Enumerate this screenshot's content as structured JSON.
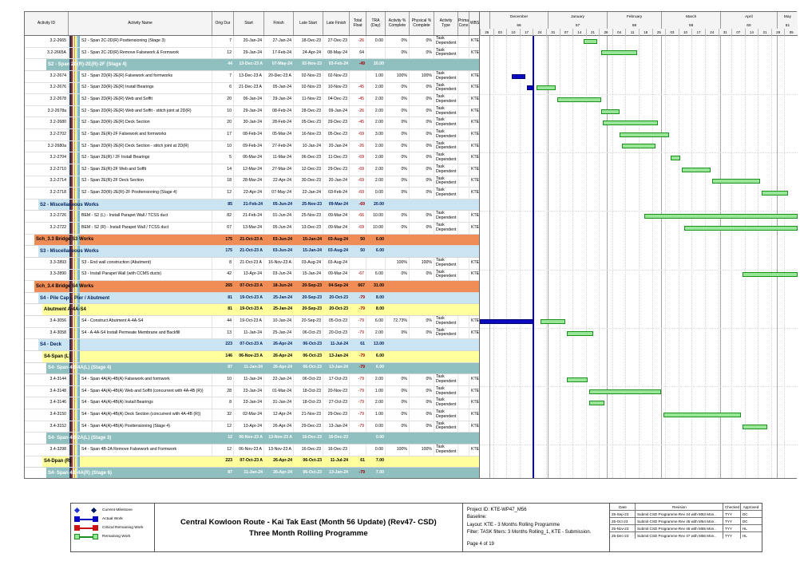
{
  "table": {
    "columns": [
      "Activity ID",
      "Activity Name",
      "Orig Dur",
      "Start",
      "Finish",
      "Late Start",
      "Late Finish",
      "Total Float",
      "TRA (Day)",
      "Activity % Complete",
      "Physical % Complete",
      "Activity Type",
      "Prima Cons",
      "WBS"
    ],
    "rows": [
      {
        "t": "task",
        "id": "3.2-2665",
        "n": "S2 - Span 2C-2D(R) Posttensioning (Stage 3)",
        "od": "7",
        "st": "20-Jan-24",
        "fn": "27-Jan-24",
        "ls": "18-Dec-23",
        "lf": "27-Dec-23",
        "tf": "-26",
        "tra": "0.00",
        "ap": "0%",
        "pp": "0%",
        "at": "Task Dependent",
        "wbs": "KTE-W"
      },
      {
        "t": "task",
        "id": "3.2-2665A",
        "n": "S2 - Span 2C-2D(R) Remove Falsework & Formwork",
        "od": "12",
        "st": "29-Jan-24",
        "fn": "17-Feb-24",
        "ls": "24-Apr-24",
        "lf": "08-May-24",
        "tf": "64",
        "tra": "",
        "ap": "0%",
        "pp": "0%",
        "at": "Task Dependent",
        "wbs": "KTE-W"
      },
      {
        "t": "g4",
        "n": "S2 - Span 2D(R)-2E(R)-2F (Stage 4)",
        "od": "44",
        "st": "13-Dec-23 A",
        "fn": "07-May-24",
        "ls": "02-Nov-23",
        "lf": "03-Feb-24",
        "tf": "-49",
        "tra": "20.00"
      },
      {
        "t": "task",
        "id": "3.2-2674",
        "n": "S2 - Span 2D(R)-2E(R) Falsework and formworks",
        "od": "7",
        "st": "13-Dec-23 A",
        "fn": "20-Dec-23 A",
        "ls": "02-Nov-23",
        "lf": "02-Nov-23",
        "tf": "",
        "tra": "1.00",
        "ap": "100%",
        "pp": "100%",
        "at": "Task Dependent",
        "wbs": "KTE-W"
      },
      {
        "t": "task",
        "id": "3.2-2676",
        "n": "S2 - Span 2D(R)-2E(R) Install Bearings",
        "od": "6",
        "st": "21-Dec-23 A",
        "fn": "05-Jan-24",
        "ls": "02-Nov-23",
        "lf": "10-Nov-23",
        "tf": "-45",
        "tra": "2.00",
        "ap": "0%",
        "pp": "0%",
        "at": "Task Dependent",
        "wbs": "KTE-W"
      },
      {
        "t": "task",
        "id": "3.2-2678",
        "n": "S2 - Span 2D(R)-2E(R) Web and Soffit",
        "od": "20",
        "st": "06-Jan-24",
        "fn": "29-Jan-24",
        "ls": "11-Nov-23",
        "lf": "04-Dec-23",
        "tf": "-45",
        "tra": "2.00",
        "ap": "0%",
        "pp": "0%",
        "at": "Task Dependent",
        "wbs": "KTE-W"
      },
      {
        "t": "task",
        "id": "3.2-2678a",
        "n": "S2 - Span 2D(R)-2E(R) Web and Soffit - stitch joint at 2D(R)",
        "od": "10",
        "st": "29-Jan-24",
        "fn": "08-Feb-24",
        "ls": "28-Dec-23",
        "lf": "09-Jan-24",
        "tf": "-26",
        "tra": "2.00",
        "ap": "0%",
        "pp": "0%",
        "at": "Task Dependent",
        "wbs": "KTE-W"
      },
      {
        "t": "task",
        "id": "3.2-2680",
        "n": "S2 - Span 2D(R)-2E(R) Deck Section",
        "od": "20",
        "st": "30-Jan-24",
        "fn": "28-Feb-24",
        "ls": "05-Dec-23",
        "lf": "29-Dec-23",
        "tf": "-45",
        "tra": "2.00",
        "ap": "0%",
        "pp": "0%",
        "at": "Task Dependent",
        "wbs": "KTE-W"
      },
      {
        "t": "task",
        "id": "3.2-2702",
        "n": "S2 - Span 2E(R)-2F Falsework and formworks",
        "od": "17",
        "st": "08-Feb-24",
        "fn": "05-Mar-24",
        "ls": "16-Nov-23",
        "lf": "05-Dec-23",
        "tf": "-69",
        "tra": "3.00",
        "ap": "0%",
        "pp": "0%",
        "at": "Task Dependent",
        "wbs": "KTE-W"
      },
      {
        "t": "task",
        "id": "3.2-2680a",
        "n": "S2 - Span 2D(R)-2E(R) Deck Section - stitch joint at 2D(R)",
        "od": "10",
        "st": "09-Feb-24",
        "fn": "27-Feb-24",
        "ls": "10-Jan-24",
        "lf": "20-Jan-24",
        "tf": "-26",
        "tra": "2.00",
        "ap": "0%",
        "pp": "0%",
        "at": "Task Dependent",
        "wbs": "KTE-W"
      },
      {
        "t": "task",
        "id": "3.2-2704",
        "n": "S2 - Span 2E(R) / 2F Install Bearings",
        "od": "5",
        "st": "06-Mar-24",
        "fn": "11-Mar-24",
        "ls": "06-Dec-23",
        "lf": "11-Dec-23",
        "tf": "-69",
        "tra": "2.00",
        "ap": "0%",
        "pp": "0%",
        "at": "Task Dependent",
        "wbs": "KTE-W"
      },
      {
        "t": "task",
        "id": "3.2-2710",
        "n": "S2 - Span 2E(R)-2F Web and Soffit",
        "od": "14",
        "st": "12-Mar-24",
        "fn": "27-Mar-24",
        "ls": "12-Dec-23",
        "lf": "29-Dec-23",
        "tf": "-69",
        "tra": "2.00",
        "ap": "0%",
        "pp": "0%",
        "at": "Task Dependent",
        "wbs": "KTE-W"
      },
      {
        "t": "task",
        "id": "3.2-2714",
        "n": "S2 - Span 2E(R)-2F Deck Section",
        "od": "18",
        "st": "28-Mar-24",
        "fn": "22-Apr-24",
        "ls": "30-Dec-23",
        "lf": "20-Jan-24",
        "tf": "-69",
        "tra": "2.00",
        "ap": "0%",
        "pp": "0%",
        "at": "Task Dependent",
        "wbs": "KTE-W"
      },
      {
        "t": "task",
        "id": "3.2-2718",
        "n": "S2 - Span 2D(R)-2E(R)-2F Posttensioning (Stage 4)",
        "od": "12",
        "st": "23-Apr-24",
        "fn": "07-May-24",
        "ls": "22-Jan-24",
        "lf": "03-Feb-24",
        "tf": "-69",
        "tra": "0.00",
        "ap": "0%",
        "pp": "0%",
        "at": "Task Dependent",
        "wbs": "KTE-W"
      },
      {
        "t": "g2",
        "n": "S2 - Miscellaneous Works",
        "od": "85",
        "st": "21-Feb-24",
        "fn": "05-Jun-24",
        "ls": "25-Nov-23",
        "lf": "09-Mar-24",
        "tf": "-69",
        "tra": "20.00"
      },
      {
        "t": "task",
        "id": "3.2-2726",
        "n": "BEM - S2 (L) - Install Parapet Wall / TCSS duct",
        "od": "82",
        "st": "21-Feb-24",
        "fn": "01-Jun-24",
        "ls": "25-Nov-23",
        "lf": "09-Mar-24",
        "tf": "-66",
        "tra": "10.00",
        "ap": "0%",
        "pp": "0%",
        "at": "Task Dependent",
        "wbs": "KTE-W"
      },
      {
        "t": "task",
        "id": "3.2-2722",
        "n": "BEM - S2 (R) - Install Parapet Wall / TCSS duct",
        "od": "67",
        "st": "13-Mar-24",
        "fn": "05-Jun-24",
        "ls": "13-Dec-23",
        "lf": "09-Mar-24",
        "tf": "-69",
        "tra": "10.00",
        "ap": "0%",
        "pp": "0%",
        "at": "Task Dependent",
        "wbs": "KTE-W"
      },
      {
        "t": "g1",
        "n": "Sch_3.3 Bridge S3 Works",
        "od": "175",
        "st": "21-Oct-23 A",
        "fn": "03-Jun-24",
        "ls": "15-Jan-24",
        "lf": "03-Aug-24",
        "tf": "50",
        "tra": "6.00"
      },
      {
        "t": "g2",
        "n": "S3 - Miscellaneous Works",
        "od": "175",
        "st": "21-Oct-23 A",
        "fn": "03-Jun-24",
        "ls": "15-Jan-24",
        "lf": "03-Aug-24",
        "tf": "50",
        "tra": "6.00"
      },
      {
        "t": "task",
        "id": "3.3-2893",
        "n": "S3 - End wall construction (Abutment)",
        "od": "8",
        "st": "21-Oct-23 A",
        "fn": "16-Nov-23 A",
        "ls": "03-Aug-24",
        "lf": "03-Aug-24",
        "tf": "",
        "tra": "",
        "ap": "100%",
        "pp": "100%",
        "at": "Task Dependent",
        "wbs": "KTE-W"
      },
      {
        "t": "task",
        "id": "3.3-2890",
        "n": "S3 - Install Parapet Wall (with CCMS ducts)",
        "od": "42",
        "st": "13-Apr-24",
        "fn": "03-Jun-24",
        "ls": "15-Jan-24",
        "lf": "09-Mar-24",
        "tf": "-67",
        "tra": "6.00",
        "ap": "0%",
        "pp": "0%",
        "at": "Task Dependent",
        "wbs": "KTE-W"
      },
      {
        "t": "g1",
        "n": "Sch_3.4 Bridge S4 Works",
        "od": "265",
        "st": "07-Oct-23 A",
        "fn": "18-Jun-24",
        "ls": "20-Sep-23",
        "lf": "04-Sep-24",
        "tf": "667",
        "tra": "31.00"
      },
      {
        "t": "g2",
        "n": "S4 - Pile Caps, Pier / Abutment",
        "od": "81",
        "st": "19-Oct-23 A",
        "fn": "25-Jan-24",
        "ls": "20-Sep-23",
        "lf": "20-Oct-23",
        "tf": "-79",
        "tra": "8.00"
      },
      {
        "t": "g3",
        "n": "Abutment A-4A-S4",
        "od": "81",
        "st": "19-Oct-23 A",
        "fn": "25-Jan-24",
        "ls": "20-Sep-23",
        "lf": "20-Oct-23",
        "tf": "-79",
        "tra": "8.00"
      },
      {
        "t": "task",
        "id": "3.4-3056",
        "n": "S4 - Construct Abutment A-4A-S4",
        "od": "44",
        "st": "19-Oct-23 A",
        "fn": "10-Jan-24",
        "ls": "20-Sep-23",
        "lf": "05-Oct-23",
        "tf": "-79",
        "tra": "6.00",
        "ap": "72.73%",
        "pp": "0%",
        "at": "Task Dependent",
        "wbs": "KTE-W"
      },
      {
        "t": "task",
        "id": "3.4-3058",
        "n": "S4 - A-4A-S4 Install Permeate Membrane and Backfill",
        "od": "13",
        "st": "11-Jan-24",
        "fn": "25-Jan-24",
        "ls": "06-Oct-23",
        "lf": "20-Oct-23",
        "tf": "-79",
        "tra": "2.00",
        "ap": "0%",
        "pp": "0%",
        "at": "Task Dependent",
        "wbs": "KTE-W"
      },
      {
        "t": "g2",
        "n": "S4 - Deck",
        "od": "223",
        "st": "07-Oct-23 A",
        "fn": "26-Apr-24",
        "ls": "06-Oct-23",
        "lf": "11-Jul-24",
        "tf": "61",
        "tra": "13.00"
      },
      {
        "t": "g3",
        "n": "S4-Span (L)",
        "od": "146",
        "st": "06-Nov-23 A",
        "fn": "26-Apr-24",
        "ls": "06-Oct-23",
        "lf": "13-Jan-24",
        "tf": "-79",
        "tra": "6.00"
      },
      {
        "t": "g4",
        "n": "S4- Span 4B-4A(L) (Stage 4)",
        "od": "87",
        "st": "11-Jan-24",
        "fn": "26-Apr-24",
        "ls": "06-Oct-23",
        "lf": "13-Jan-24",
        "tf": "-79",
        "tra": "6.00"
      },
      {
        "t": "task",
        "id": "3.4-3144",
        "n": "S4 - Span 4A(A)-4B(A) Falsework and formwork",
        "od": "10",
        "st": "11-Jan-24",
        "fn": "22-Jan-24",
        "ls": "06-Oct-23",
        "lf": "17-Oct-23",
        "tf": "-79",
        "tra": "2.00",
        "ap": "0%",
        "pp": "0%",
        "at": "Task Dependent",
        "wbs": "KTE-W"
      },
      {
        "t": "task",
        "id": "3.4-3148",
        "n": "S4 - Span 4A(A)-4B(A) Web and Soffit (concurrent with 4A-4B (R))",
        "od": "28",
        "st": "23-Jan-24",
        "fn": "01-Mar-24",
        "ls": "18-Oct-23",
        "lf": "20-Nov-23",
        "tf": "-79",
        "tra": "1.00",
        "ap": "0%",
        "pp": "0%",
        "at": "Task Dependent",
        "wbs": "KTE-W"
      },
      {
        "t": "task",
        "id": "3.4-3146",
        "n": "S4 - Span 4A(A)-4B(A) Install Bearings",
        "od": "8",
        "st": "23-Jan-24",
        "fn": "31-Jan-24",
        "ls": "18-Oct-23",
        "lf": "27-Oct-23",
        "tf": "-79",
        "tra": "2.00",
        "ap": "0%",
        "pp": "0%",
        "at": "Task Dependent",
        "wbs": "KTE-W"
      },
      {
        "t": "task",
        "id": "3.4-3150",
        "n": "S4 - Span 4A(A)-4B(A) Deck Section (concurrent with 4A-4B (R))",
        "od": "32",
        "st": "02-Mar-24",
        "fn": "12-Apr-24",
        "ls": "21-Nov-23",
        "lf": "29-Dec-23",
        "tf": "-79",
        "tra": "1.00",
        "ap": "0%",
        "pp": "0%",
        "at": "Task Dependent",
        "wbs": "KTE-W"
      },
      {
        "t": "task",
        "id": "3.4-3152",
        "n": "S4 - Span 4A(A)-4B(A) Posttensioning (Stage 4)",
        "od": "12",
        "st": "13-Apr-24",
        "fn": "26-Apr-24",
        "ls": "29-Dec-23",
        "lf": "13-Jan-24",
        "tf": "-79",
        "tra": "0.00",
        "ap": "0%",
        "pp": "0%",
        "at": "Task Dependent",
        "wbs": "KTE-W"
      },
      {
        "t": "g4",
        "n": "S4- Span 4B-2A(L) (Stage 3)",
        "od": "12",
        "st": "06-Nov-23 A",
        "fn": "13-Nov-23 A",
        "ls": "16-Dec-23",
        "lf": "16-Dec-23",
        "tf": "",
        "tra": "0.00"
      },
      {
        "t": "task",
        "id": "3.4-3298",
        "n": "S4 - Span 4B-2A Remove Falsework and Formwork",
        "od": "12",
        "st": "06-Nov-23 A",
        "fn": "13-Nov-23 A",
        "ls": "16-Dec-23",
        "lf": "16-Dec-23",
        "tf": "",
        "tra": "0.00",
        "ap": "100%",
        "pp": "100%",
        "at": "Task Dependent",
        "wbs": "KTE-W"
      },
      {
        "t": "g3",
        "n": "S4-Dpan (R)",
        "od": "223",
        "st": "07-Oct-23 A",
        "fn": "26-Apr-24",
        "ls": "06-Oct-23",
        "lf": "11-Jul-24",
        "tf": "61",
        "tra": "7.00"
      },
      {
        "t": "g4",
        "n": "S4- Span 4B-4A(R) (Stage 6)",
        "od": "87",
        "st": "11-Jan-24",
        "fn": "26-Apr-24",
        "ls": "06-Oct-23",
        "lf": "13-Jan-24",
        "tf": "-79",
        "tra": "7.00"
      }
    ]
  },
  "chart_data": {
    "type": "gantt",
    "x_range": [
      "2023-11-26",
      "2024-05-12"
    ],
    "data_date": "2023-12-24",
    "timeline": {
      "lead_days": 5,
      "months": [
        {
          "name": "December",
          "num": "56",
          "days": 31
        },
        {
          "name": "January",
          "num": "57",
          "days": 31
        },
        {
          "name": "February",
          "num": "58",
          "days": 29
        },
        {
          "name": "March",
          "num": "59",
          "days": 31
        },
        {
          "name": "April",
          "num": "60",
          "days": 30
        },
        {
          "name": "May",
          "num": "61",
          "days": 11
        }
      ],
      "weeks": [
        "26",
        "03",
        "10",
        "17",
        "24",
        "31",
        "07",
        "14",
        "21",
        "28",
        "04",
        "11",
        "18",
        "25",
        "03",
        "10",
        "17",
        "24",
        "31",
        "07",
        "14",
        "21",
        "28",
        "05"
      ]
    },
    "bars": [
      {
        "r": 0,
        "k": "rem",
        "s": "2024-01-20",
        "e": "2024-01-27"
      },
      {
        "r": 1,
        "k": "rem",
        "s": "2024-01-29",
        "e": "2024-02-17"
      },
      {
        "r": 3,
        "k": "act",
        "s": "2023-12-13",
        "e": "2023-12-20"
      },
      {
        "r": 4,
        "k": "act",
        "s": "2023-12-21",
        "e": "2023-12-24"
      },
      {
        "r": 4,
        "k": "rem",
        "s": "2023-12-26",
        "e": "2024-01-05"
      },
      {
        "r": 5,
        "k": "rem",
        "s": "2024-01-06",
        "e": "2024-01-29"
      },
      {
        "r": 6,
        "k": "rem",
        "s": "2024-01-29",
        "e": "2024-02-08"
      },
      {
        "r": 7,
        "k": "rem",
        "s": "2024-01-30",
        "e": "2024-02-28"
      },
      {
        "r": 8,
        "k": "rem",
        "s": "2024-02-08",
        "e": "2024-03-05"
      },
      {
        "r": 9,
        "k": "rem",
        "s": "2024-02-09",
        "e": "2024-02-27"
      },
      {
        "r": 10,
        "k": "rem",
        "s": "2024-03-06",
        "e": "2024-03-11"
      },
      {
        "r": 11,
        "k": "rem",
        "s": "2024-03-12",
        "e": "2024-03-27"
      },
      {
        "r": 12,
        "k": "rem",
        "s": "2024-03-28",
        "e": "2024-04-22"
      },
      {
        "r": 13,
        "k": "rem",
        "s": "2024-04-23",
        "e": "2024-05-07"
      },
      {
        "r": 15,
        "k": "rem",
        "s": "2024-02-21",
        "e": "2024-06-01"
      },
      {
        "r": 16,
        "k": "rem",
        "s": "2024-03-13",
        "e": "2024-06-05"
      },
      {
        "r": 20,
        "k": "rem",
        "s": "2024-04-13",
        "e": "2024-06-03"
      },
      {
        "r": 24,
        "k": "act",
        "s": "2023-11-26",
        "e": "2023-12-24"
      },
      {
        "r": 24,
        "k": "rem",
        "s": "2023-12-28",
        "e": "2024-01-10"
      },
      {
        "r": 25,
        "k": "rem",
        "s": "2024-01-11",
        "e": "2024-01-25"
      },
      {
        "r": 29,
        "k": "rem",
        "s": "2024-01-11",
        "e": "2024-01-22"
      },
      {
        "r": 30,
        "k": "rem",
        "s": "2024-01-23",
        "e": "2024-03-01"
      },
      {
        "r": 31,
        "k": "rem",
        "s": "2024-01-23",
        "e": "2024-01-31"
      },
      {
        "r": 32,
        "k": "rem",
        "s": "2024-03-02",
        "e": "2024-04-12"
      },
      {
        "r": 33,
        "k": "rem",
        "s": "2024-04-13",
        "e": "2024-04-26"
      }
    ],
    "colors": {
      "remaining": "#98E698",
      "actual": "#0A0AC0",
      "critical": "#CC1111",
      "data_date_line": "#0000C8"
    }
  },
  "legend": [
    {
      "key": "current-milestone",
      "label": "Current Milestone"
    },
    {
      "key": "actual-work",
      "label": "Actual Work"
    },
    {
      "key": "critical-remaining-work",
      "label": "Critical Remaining Work"
    },
    {
      "key": "remaining-work",
      "label": "Remaining Work"
    }
  ],
  "footer": {
    "title_line1": "Central Kowloon Route - Kai Tak East (Month 56 Update) (Rev47- CSD)",
    "title_line2": "Three Month Rolling Programme",
    "project_id": "Project ID: KTE-WP47_M56",
    "baseline": "Baseline:",
    "layout": "Layout: KTE - 3 Months Rolling Programme",
    "filter": "Filter: TASK filters: 3 Months Rolling_1, KTE - Submission.",
    "page": "Page 4 of 19",
    "revision_table": {
      "headers": [
        "Date",
        "Revision",
        "Checked",
        "Approved"
      ],
      "rows": [
        [
          "25-Sep-23",
          "Submit CSD Programme Rev 44 with M53 Mon..",
          "TYY",
          "DC"
        ],
        [
          "25-Oct-23",
          "Submit CSD Programme Rev 45 with M54 Mon..",
          "TYY",
          "DC"
        ],
        [
          "25-Nov-23",
          "Submit CSD Programme Rev 46 with M55 Mon..",
          "TYY",
          "HL"
        ],
        [
          "25-Dec-23",
          "Submit CSD Programme Rev 47 with M56 Mon..",
          "TYY",
          "HL"
        ]
      ]
    }
  }
}
